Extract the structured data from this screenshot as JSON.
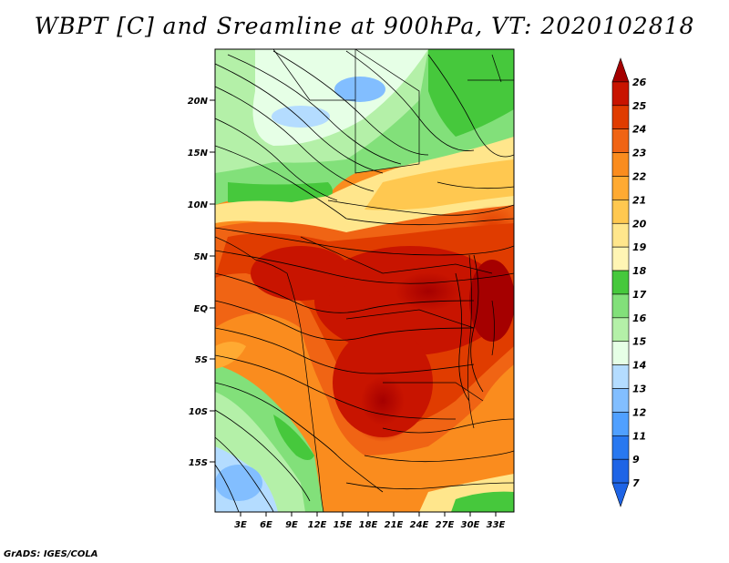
{
  "title": "WBPT [C] and Sreamline at 900hPa, VT: 2020102818",
  "credit": "GrADS: IGES/COLA",
  "map": {
    "lat_labels": [
      "20N",
      "15N",
      "10N",
      "5N",
      "EQ",
      "5S",
      "10S",
      "15S"
    ],
    "lon_labels": [
      "3E",
      "6E",
      "9E",
      "12E",
      "15E",
      "18E",
      "21E",
      "24E",
      "27E",
      "30E",
      "33E"
    ]
  },
  "colorbar": {
    "labels": [
      "26",
      "25",
      "24",
      "23",
      "22",
      "21",
      "20",
      "19",
      "18",
      "17",
      "16",
      "15",
      "14",
      "13",
      "12",
      "11",
      "9",
      "7"
    ],
    "colors": [
      "#a50000",
      "#c81400",
      "#e03c00",
      "#f06414",
      "#fa8c1e",
      "#ffaa32",
      "#ffc850",
      "#ffe68c",
      "#fff5b4",
      "#46c83c",
      "#82e07a",
      "#b4f0a8",
      "#e6ffe6",
      "#b4dcff",
      "#82beff",
      "#50a0ff",
      "#2878f0",
      "#1e64e6"
    ]
  }
}
